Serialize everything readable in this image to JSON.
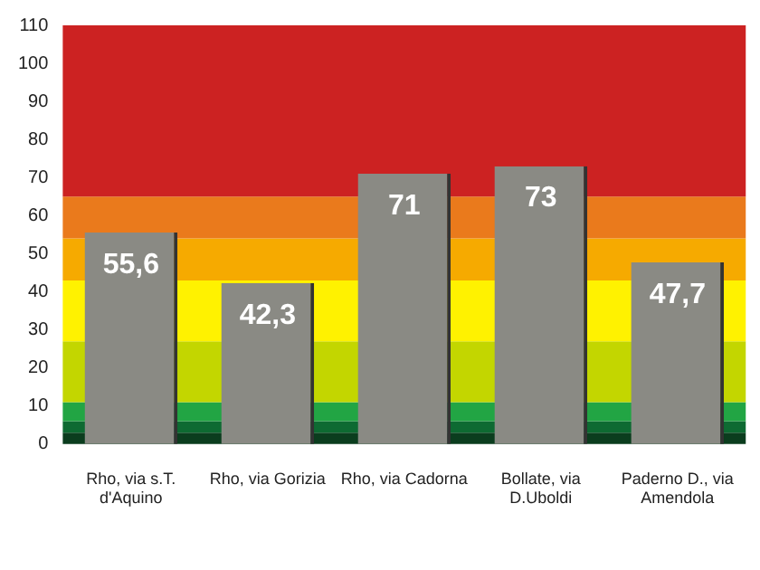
{
  "chart_data": {
    "type": "bar",
    "categories": [
      "Rho, via s.T. d'Aquino",
      "Rho, via Gorizia",
      "Rho, via Cadorna",
      "Bollate, via D.Uboldi",
      "Paderno D., via Amendola"
    ],
    "values": [
      55.6,
      42.3,
      71,
      73,
      47.7
    ],
    "value_labels": [
      "55,6",
      "42,3",
      "71",
      "73",
      "47,7"
    ],
    "color": "#8a8a84",
    "ylim": [
      0,
      110
    ],
    "yticks": [
      0,
      10,
      20,
      30,
      40,
      50,
      60,
      70,
      80,
      90,
      100,
      110
    ],
    "grid": false,
    "legend": false,
    "bands": [
      {
        "axis": "y",
        "from": 0,
        "to": 3,
        "color": "#0b3d1e"
      },
      {
        "axis": "y",
        "from": 3,
        "to": 6,
        "color": "#0e6a32"
      },
      {
        "axis": "y",
        "from": 6,
        "to": 11,
        "color": "#22a544"
      },
      {
        "axis": "y",
        "from": 11,
        "to": 27,
        "color": "#c3d600"
      },
      {
        "axis": "y",
        "from": 27,
        "to": 43,
        "color": "#fff200"
      },
      {
        "axis": "y",
        "from": 43,
        "to": 54,
        "color": "#f6aa00"
      },
      {
        "axis": "y",
        "from": 54,
        "to": 65,
        "color": "#ea7a1c"
      },
      {
        "axis": "y",
        "from": 65,
        "to": 110,
        "color": "#cc2222"
      }
    ]
  }
}
